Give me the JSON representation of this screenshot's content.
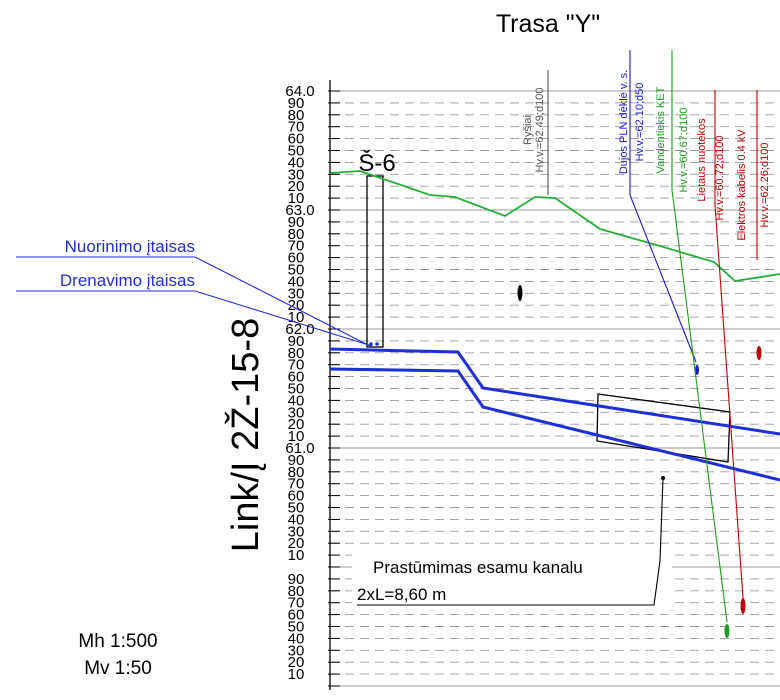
{
  "title": "Trasa \"Y\"",
  "profile_id": "Link/Į 2Ž-15-8",
  "well_label": "Š-6",
  "scales": {
    "horizontal": "Mh 1:500",
    "vertical": "Mv 1:50"
  },
  "scale_major": [
    "64.0",
    "63.0",
    "62.0",
    "61.0"
  ],
  "scale_minor": [
    "90",
    "80",
    "70",
    "60",
    "50",
    "40",
    "30",
    "20",
    "10",
    "00"
  ],
  "callouts": {
    "nuorinimo": "Nuorinimo įtaisas",
    "drenavimo": "Drenavimo įtaisas"
  },
  "note": {
    "line1": "Prastūmimas esamu kanalu",
    "line2": "2xL=8,60 m"
  },
  "crossings": [
    {
      "name": "Ryšiai",
      "level": "Hv.v.=62.49;d100",
      "color": "#555555"
    },
    {
      "name": "Dujos PLN dėklė v. s.",
      "level": "Hv.v.=62.10;d50",
      "color": "#1a1acc"
    },
    {
      "name": "Vandentiekis KET",
      "level": "Hv.v.=60.67;d100",
      "color": "#1aa01a"
    },
    {
      "name": "Lietaus nuotekos",
      "level": "Hv.v.=60.72;d100",
      "color": "#c00000"
    },
    {
      "name": "Elektros kabelis 0.4 kV",
      "level": "Hv.v.=62.26;d100",
      "color": "#c00000"
    }
  ],
  "colors": {
    "ground": "#22b038",
    "pipe": "#1f2fd6",
    "callout": "#1f2fd6"
  }
}
